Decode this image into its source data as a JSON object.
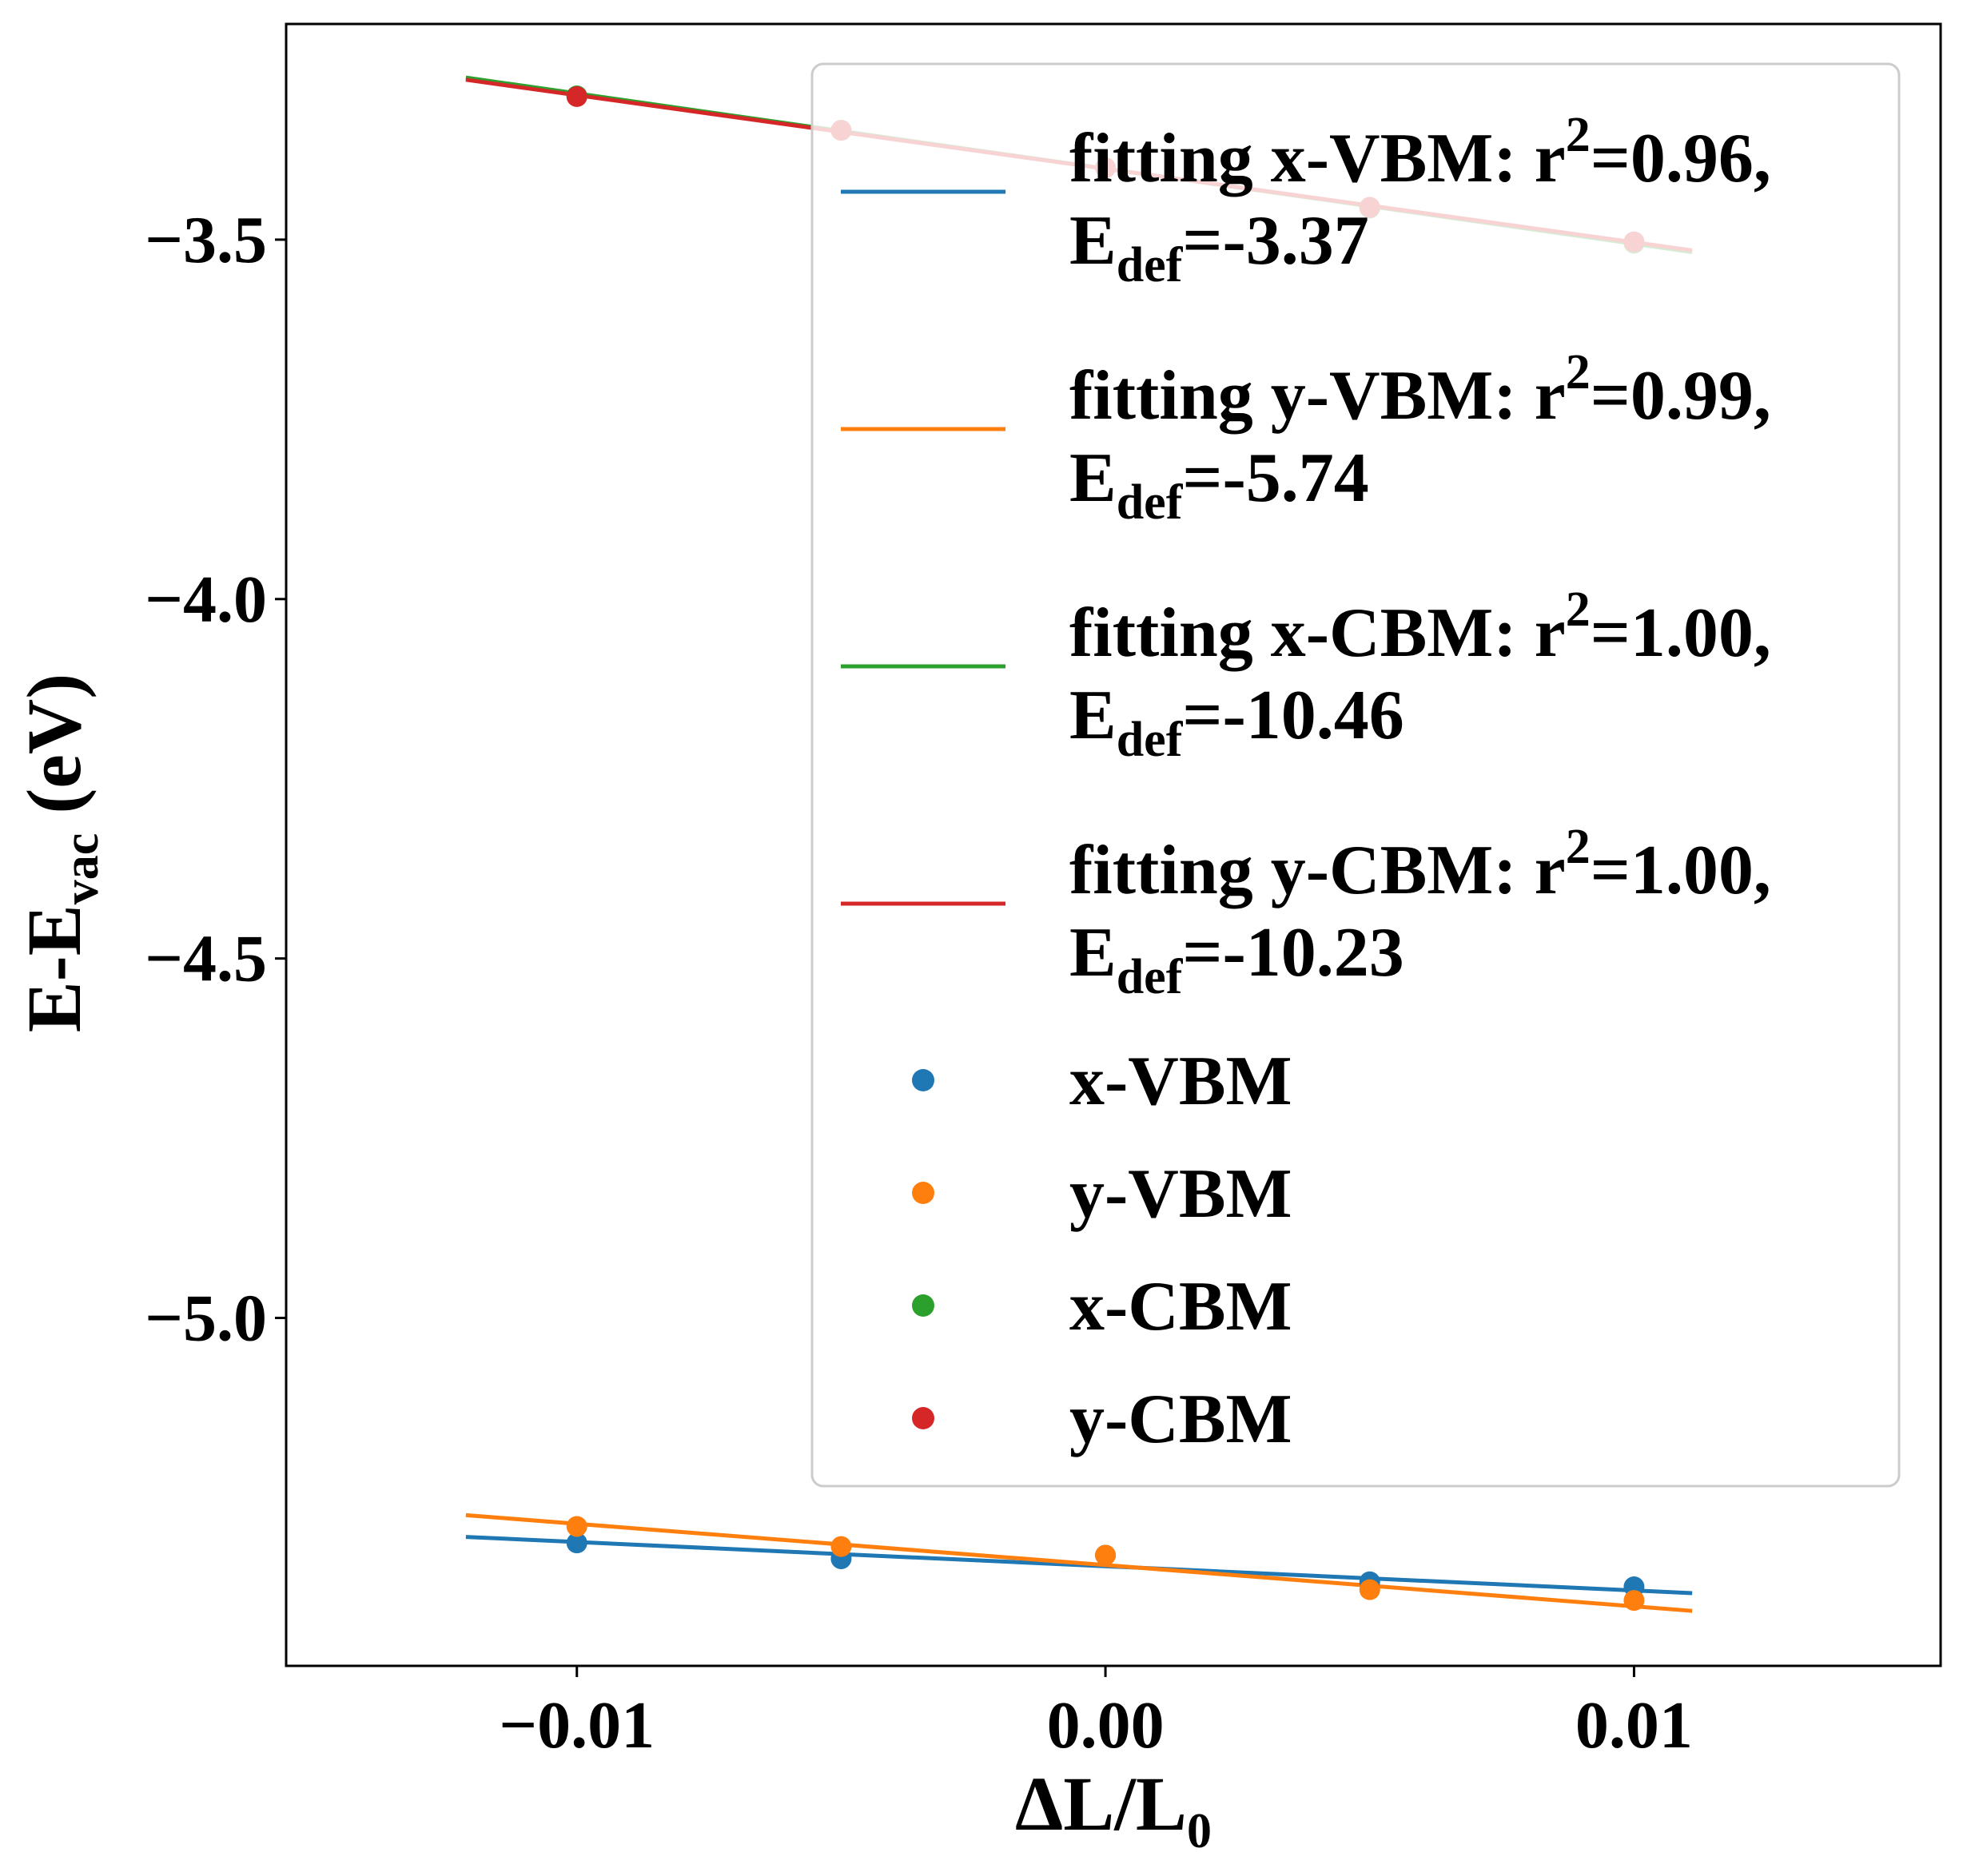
{
  "chart_data": {
    "type": "scatter",
    "title": "",
    "xlabel": "ΔL/L0",
    "xlabel_main": "ΔL/L",
    "xlabel_sub": "0",
    "ylabel": "E-Evac (eV)",
    "ylabel_parts": {
      "a": "E-E",
      "sub": "vac",
      "b": " (eV)"
    },
    "xlim": [
      -0.0155,
      0.0158
    ],
    "ylim": [
      -5.484,
      -3.2
    ],
    "xticks": [
      -0.01,
      0.0,
      0.01
    ],
    "xtick_labels": [
      "−0.01",
      "0.00",
      "0.01"
    ],
    "yticks": [
      -3.5,
      -4.0,
      -4.5,
      -5.0
    ],
    "ytick_labels": [
      "−3.5",
      "−4.0",
      "−4.5",
      "−5.0"
    ],
    "grid": false,
    "legend_position": "upper right",
    "x": [
      -0.01,
      -0.005,
      0.0,
      0.005,
      0.01
    ],
    "series": [
      {
        "name": "x-VBM",
        "color": "#1f77b4",
        "values": [
          -5.313,
          -5.335,
          -5.33,
          -5.367,
          -5.374
        ],
        "fit_label": "fitting x-VBM: r²=0.96, Edef=-3.37",
        "fit_line1": "fitting x-VBM: r",
        "fit_sup": "2",
        "fit_line1_tail": "=0.96,",
        "fit_line2_a": "E",
        "fit_line2_sub": "def",
        "fit_line2_b": "=-3.37",
        "fit_intercept": -5.3454,
        "fit_slope": -3.37
      },
      {
        "name": "y-VBM",
        "color": "#ff7f0e",
        "values": [
          -5.29,
          -5.318,
          -5.33,
          -5.378,
          -5.393
        ],
        "fit_label": "fitting y-VBM: r²=0.99, Edef=-5.74",
        "fit_line1": "fitting y-VBM: r",
        "fit_sup": "2",
        "fit_line1_tail": "=0.99,",
        "fit_line2_a": "E",
        "fit_line2_sub": "def",
        "fit_line2_b": "=-5.74",
        "fit_intercept": -5.3438,
        "fit_slope": -5.74
      },
      {
        "name": "x-CBM",
        "color": "#2ca02c",
        "values": [
          -3.3,
          -3.348,
          -3.4,
          -3.456,
          -3.505
        ],
        "fit_label": "fitting x-CBM: r²=1.00, Edef=-10.46",
        "fit_line1": "fitting x-CBM: r",
        "fit_sup": "2",
        "fit_line1_tail": "=1.00,",
        "fit_line2_a": "E",
        "fit_line2_sub": "def",
        "fit_line2_b": "=-10.46",
        "fit_intercept": -3.4012,
        "fit_slope": -10.46
      },
      {
        "name": "y-CBM",
        "color": "#d62728",
        "values": [
          -3.301,
          -3.348,
          -3.4,
          -3.455,
          -3.503
        ],
        "fit_label": "fitting y-CBM: r²=1.00, Edef=-10.23",
        "fit_line1": "fitting y-CBM: r",
        "fit_sup": "2",
        "fit_line1_tail": "=1.00,",
        "fit_line2_a": "E",
        "fit_line2_sub": "def",
        "fit_line2_b": "=-10.23",
        "fit_intercept": -3.4014,
        "fit_slope": -10.23
      }
    ],
    "fit_x_range": [
      -0.0121,
      0.0111
    ]
  }
}
